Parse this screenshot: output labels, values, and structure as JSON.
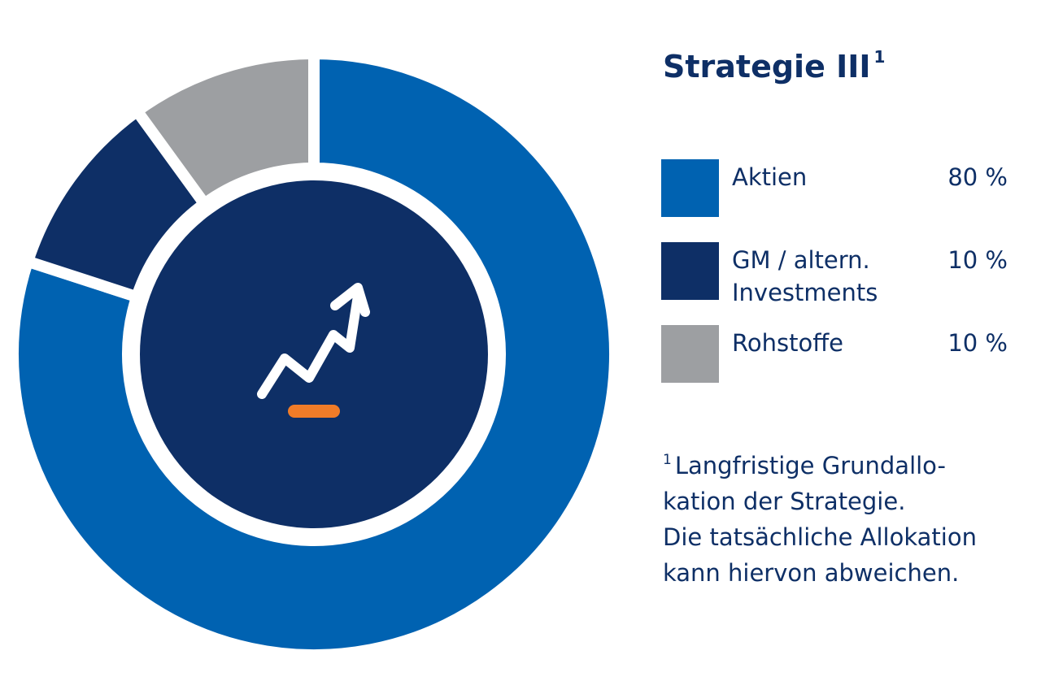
{
  "chart_data": {
    "type": "pie",
    "style": "donut",
    "title": "Strategie III",
    "title_footnote_marker": "1",
    "categories": [
      "Aktien",
      "GM / altern. Investments",
      "Rohstoffe"
    ],
    "values": [
      80,
      10,
      10
    ],
    "value_labels": [
      "80 %",
      "10 %",
      "10 %"
    ],
    "label_lines": [
      [
        "Aktien"
      ],
      [
        "GM / altern.",
        "Investments"
      ],
      [
        "Rohstoffe"
      ]
    ],
    "colors": [
      "#0062b1",
      "#0e2f66",
      "#9d9fa2"
    ],
    "legend_position": "right",
    "center_icon": "trend-up-arrow-icon",
    "center_color": "#0e2f66",
    "accent_color": "#f07c28"
  },
  "footnote": {
    "marker": "1",
    "lines": [
      "Langfristige Grundallo-",
      "kation der Strategie.",
      "Die tatsächliche Allokation",
      "kann hiervon abweichen."
    ]
  }
}
